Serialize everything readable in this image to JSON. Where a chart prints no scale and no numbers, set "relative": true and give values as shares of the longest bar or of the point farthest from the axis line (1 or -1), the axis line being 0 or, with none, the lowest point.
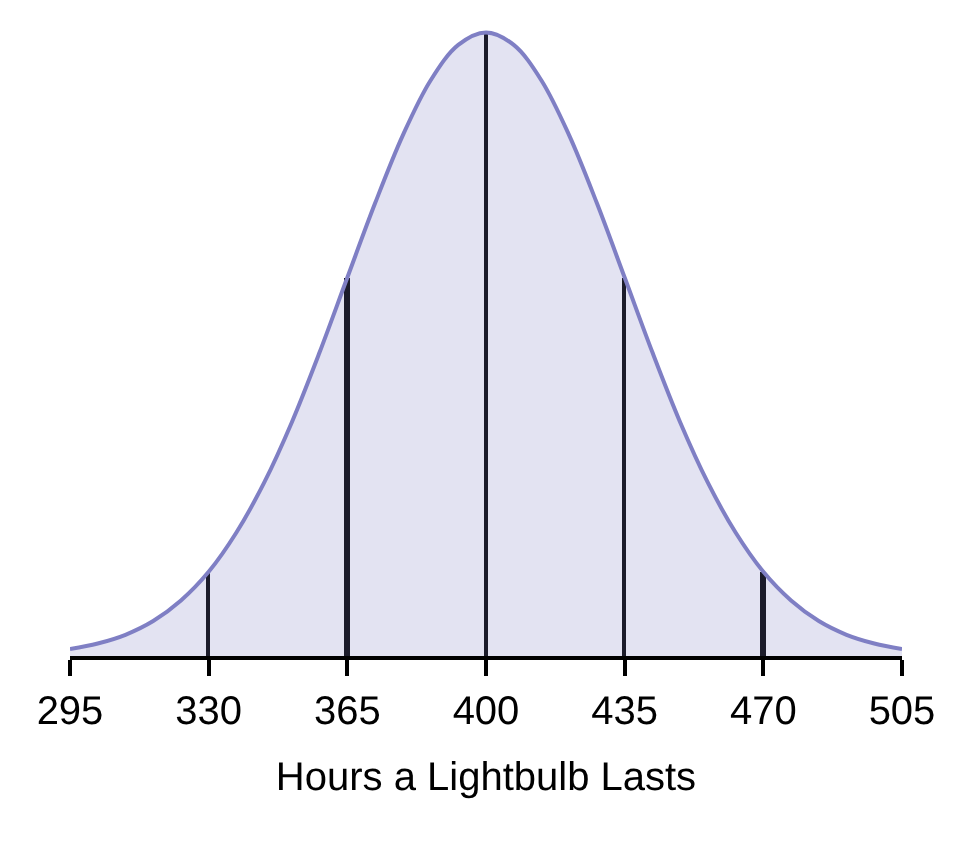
{
  "chart_data": {
    "type": "area",
    "xlabel": "Hours a Lightbulb Lasts",
    "relative": true,
    "xlim": [
      295,
      505
    ],
    "xticks": [
      295,
      330,
      365,
      400,
      435,
      470,
      505
    ],
    "marker": "none",
    "series": [
      {
        "color": "#7f7fc4",
        "x": [
          295,
          302,
          309,
          316,
          323,
          330,
          337,
          344,
          351,
          358,
          365,
          372,
          379,
          386,
          393,
          400,
          407,
          414,
          421,
          428,
          435,
          442,
          449,
          456,
          463,
          470,
          477,
          484,
          491,
          498,
          505
        ],
        "values": [
          0.011,
          0.02,
          0.034,
          0.056,
          0.089,
          0.135,
          0.198,
          0.278,
          0.375,
          0.487,
          0.607,
          0.726,
          0.835,
          0.923,
          0.98,
          1,
          0.98,
          0.923,
          0.835,
          0.726,
          0.607,
          0.487,
          0.375,
          0.278,
          0.198,
          0.135,
          0.089,
          0.056,
          0.034,
          0.02,
          0.011
        ]
      },
      {
        "type": "bar",
        "color": "#000000",
        "x": [
          330,
          365,
          400,
          435,
          470
        ],
        "values": [
          0.135,
          0.607,
          1,
          0.607,
          0.135
        ]
      }
    ]
  }
}
